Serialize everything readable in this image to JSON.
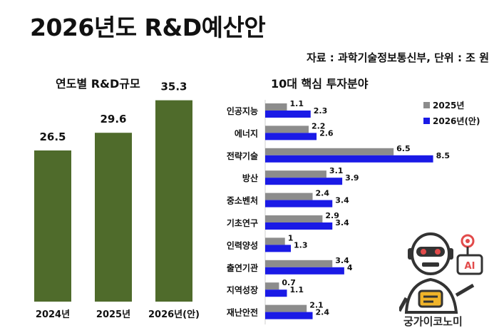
{
  "header": {
    "title": "2026년도 R&D예산안",
    "source": "자료 : 과학기술정보통신부, 단위 : 조 원"
  },
  "brand": {
    "name": "궁가이코노미"
  },
  "colors": {
    "left_bar": "#4f6b2b",
    "series_2025": "#8c8c8c",
    "series_2026": "#1a1ae6",
    "label_text": "#111111"
  },
  "chart_data": [
    {
      "type": "bar",
      "title": "연도별 R&D규모",
      "categories": [
        "2024년",
        "2025년",
        "2026년(안)"
      ],
      "values": [
        26.5,
        29.6,
        35.3
      ],
      "ylim": [
        0,
        40
      ],
      "grid": false,
      "xlabel": "",
      "ylabel": ""
    },
    {
      "type": "bar",
      "orientation": "horizontal",
      "title": "10대 핵심 투자분야",
      "categories": [
        "인공지능",
        "에너지",
        "전략기술",
        "방산",
        "중소벤처",
        "기초연구",
        "인력양성",
        "출연기관",
        "지역성장",
        "재난안전"
      ],
      "series": [
        {
          "name": "2025년",
          "values": [
            1.1,
            2.2,
            6.5,
            3.1,
            2.4,
            2.9,
            1,
            3.4,
            0.7,
            2.1
          ]
        },
        {
          "name": "2026년(안)",
          "values": [
            2.3,
            2.6,
            8.5,
            3.9,
            3.4,
            3.4,
            1.3,
            4,
            1.1,
            2.4
          ]
        }
      ],
      "xlim": [
        0,
        9.2
      ],
      "legend_position": "top-right",
      "grid": false
    }
  ]
}
